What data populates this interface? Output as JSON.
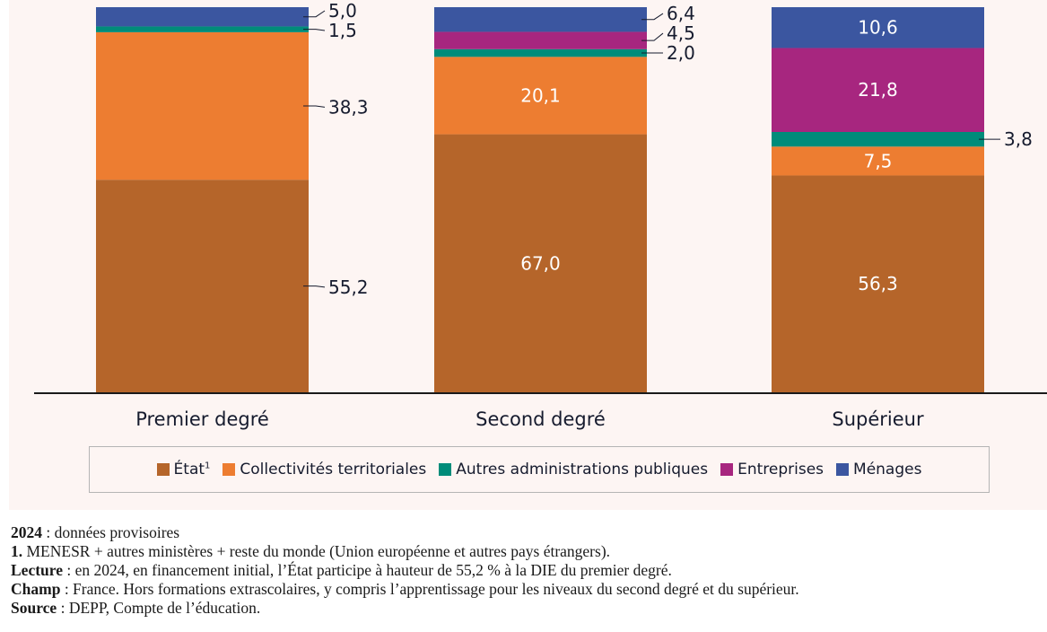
{
  "chart_data": {
    "type": "bar",
    "stacked": true,
    "title": "",
    "xlabel": "",
    "ylabel": "",
    "ylim": [
      0,
      100
    ],
    "unit": "%",
    "grid": false,
    "legend_position": "bottom",
    "categories": [
      "Premier degré",
      "Second degré",
      "Supérieur"
    ],
    "series": [
      {
        "name": "État",
        "footnote": "1",
        "color": "#b5652a",
        "values": [
          55.2,
          67.0,
          56.3
        ],
        "labels": [
          "55,2",
          "67,0",
          "56,3"
        ]
      },
      {
        "name": "Collectivités territoriales",
        "color": "#ed7d31",
        "values": [
          38.3,
          20.1,
          7.5
        ],
        "labels": [
          "38,3",
          "20,1",
          "7,5"
        ]
      },
      {
        "name": "Autres administrations publiques",
        "color": "#008c7a",
        "values": [
          1.5,
          2.0,
          3.8
        ],
        "labels": [
          "1,5",
          "2,0",
          "3,8"
        ]
      },
      {
        "name": "Entreprises",
        "color": "#a7267f",
        "values": [
          0,
          4.5,
          21.8
        ],
        "labels": [
          "",
          "4,5",
          "21,8"
        ]
      },
      {
        "name": "Ménages",
        "color": "#3b56a0",
        "values": [
          5.0,
          6.4,
          10.6
        ],
        "labels": [
          "5,0",
          "6,4",
          "10,6"
        ]
      }
    ]
  },
  "notes": [
    {
      "bold": "2024",
      "text": " : données provisoires"
    },
    {
      "bold": "1.",
      "text": " MENESR + autres ministères + reste du monde (Union européenne et autres pays étrangers)."
    },
    {
      "bold": "Lecture",
      "text": " : en 2024, en financement initial, l’État participe à hauteur de 55,2 % à la DIE du premier degré."
    },
    {
      "bold": "Champ",
      "text": " : France. Hors formations extrascolaires, y compris l’apprentissage pour les niveaux du second degré et du supérieur."
    },
    {
      "bold": "Source",
      "text": " : DEPP, Compte de l’éducation."
    }
  ]
}
